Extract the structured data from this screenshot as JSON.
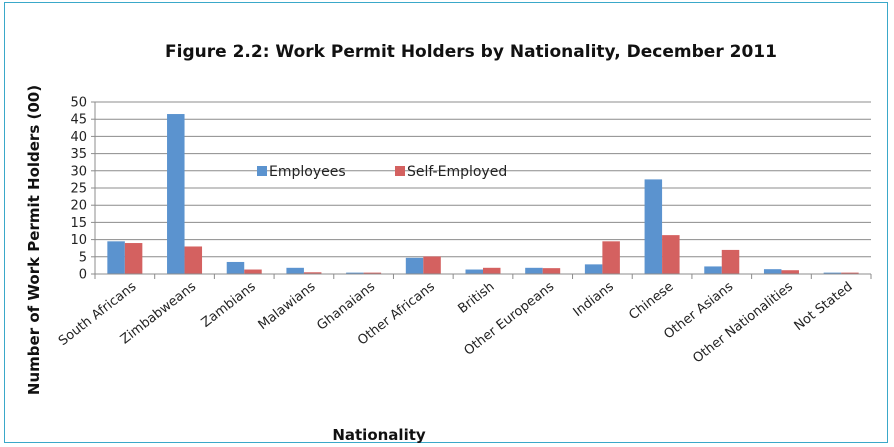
{
  "chart_data": {
    "type": "bar",
    "title": "Figure 2.2: Work Permit Holders by Nationality, December 2011",
    "xlabel": "Nationality",
    "ylabel": "Number of Work Permit Holders (00)",
    "ylim": [
      0,
      50
    ],
    "yticks": [
      0,
      5,
      10,
      15,
      20,
      25,
      30,
      35,
      40,
      45,
      50
    ],
    "grid": true,
    "legend": "center-left inside plot",
    "categories": [
      "South Africans",
      "Zimbabweans",
      "Zambians",
      "Malawians",
      "Ghanaians",
      "Other Africans",
      "British",
      "Other Europeans",
      "Indians",
      "Chinese",
      "Other Asians",
      "Other Nationalities",
      "Not Stated"
    ],
    "series": [
      {
        "name": "Employees",
        "color": "#5b93cf",
        "values": [
          9.5,
          46.5,
          3.5,
          1.8,
          0.4,
          4.7,
          1.3,
          1.8,
          2.8,
          27.5,
          2.2,
          1.4,
          0.4
        ]
      },
      {
        "name": "Self-Employed",
        "color": "#d46160",
        "values": [
          9.0,
          8.0,
          1.3,
          0.5,
          0.4,
          5.1,
          1.8,
          1.7,
          9.5,
          11.3,
          7.0,
          1.1,
          0.4
        ]
      }
    ]
  }
}
